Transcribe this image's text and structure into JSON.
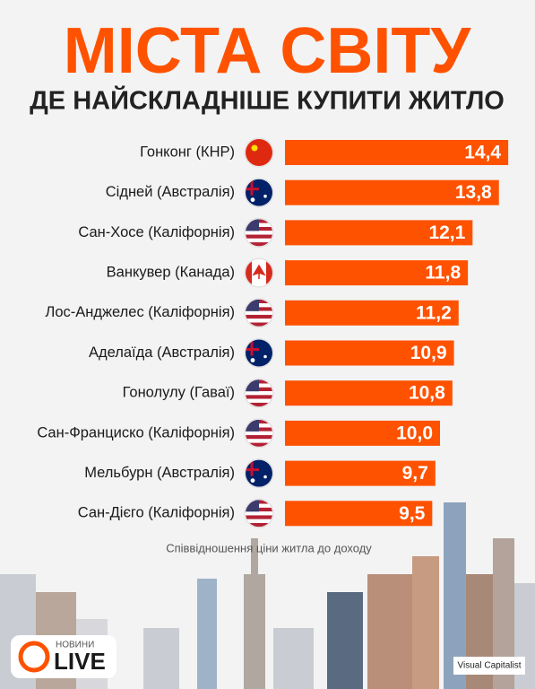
{
  "chart_data": {
    "type": "bar",
    "orientation": "horizontal",
    "title": "МІСТА СВІТУ",
    "subtitle": "ДЕ НАЙСКЛАДНІШЕ КУПИТИ ЖИТЛО",
    "x_label": "Співвідношення ціни житла до доходу",
    "categories": [
      "Гонконг (КНР)",
      "Сідней (Австралія)",
      "Сан-Хосе (Каліфорнія)",
      "Ванкувер (Канада)",
      "Лос-Анджелес (Каліфорнія)",
      "Аделаїда (Австралія)",
      "Гонолулу (Гаваї)",
      "Сан-Франциско (Каліфорнія)",
      "Мельбурн (Австралія)",
      "Сан-Дієго (Каліфорнія)"
    ],
    "values": [
      14.4,
      13.8,
      12.1,
      11.8,
      11.2,
      10.9,
      10.8,
      10.0,
      9.7,
      9.5
    ],
    "value_labels": [
      "14,4",
      "13,8",
      "12,1",
      "11,8",
      "11,2",
      "10,9",
      "10,8",
      "10,0",
      "9,7",
      "9,5"
    ],
    "color": "#ff5200",
    "source": "Visual Capitalist",
    "logo": {
      "top": "НОВИНИ",
      "main": "LIVE"
    }
  }
}
